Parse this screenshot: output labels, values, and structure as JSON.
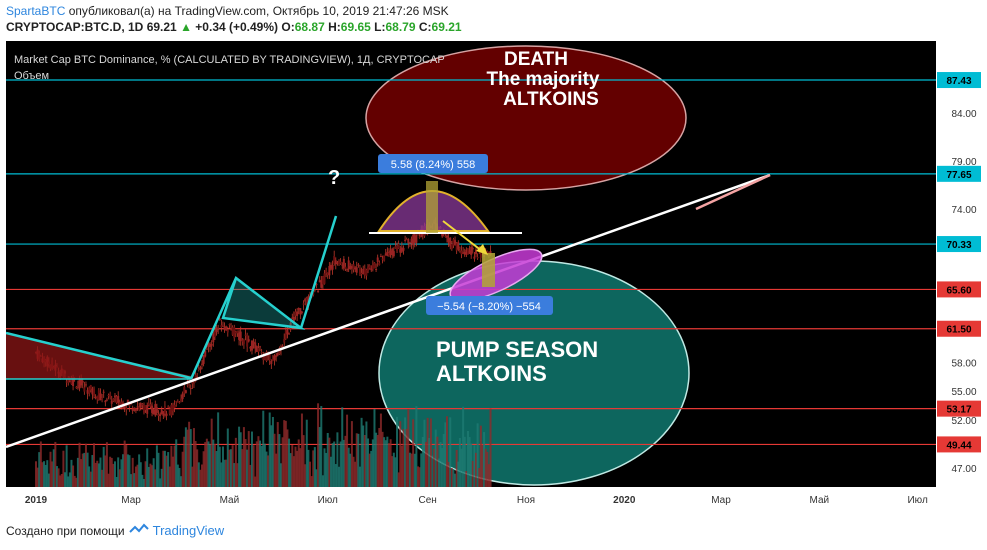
{
  "header": {
    "author": "SpartaBTC",
    "published_text": " опубликовал(а) на TradingView.com, Октябрь 10, 2019 21:47:26 MSK",
    "symbol_line": "CRYPTOCAP:BTC.D, 1D",
    "last": "69.21",
    "change": "+0.34 (+0.49%)",
    "o_label": "O:",
    "o": "68.87",
    "h_label": "H:",
    "h": "69.65",
    "l_label": "L:",
    "l": "68.79",
    "c_label": "C:",
    "c": "69.21"
  },
  "footer": {
    "text": "Создано при помощи",
    "brand": "TradingView"
  },
  "chart_data": {
    "type": "candlestick",
    "title": "Market Cap BTC Dominance, % (CALCULATED BY TRADINGVIEW), 1Д, CRYPTOCAP",
    "volume_label": "Объем",
    "x_labels": [
      "2019",
      "Мар",
      "Май",
      "Июл",
      "Сен",
      "Ноя",
      "2020",
      "Мар",
      "Май",
      "Июл"
    ],
    "y_ticks": [
      47.0,
      52.0,
      55.0,
      58.0,
      61.5,
      65.6,
      70.33,
      74.0,
      77.65,
      79.0,
      84.0,
      87.43
    ],
    "y_tick_labels": [
      "47.00",
      "52.00",
      "55.00",
      "58.00",
      "",
      "",
      "",
      "74.00",
      "",
      "79.00",
      "84.00",
      ""
    ],
    "ylim": [
      45.0,
      91.5
    ],
    "price_path": [
      [
        "2019-01-01",
        59.0
      ],
      [
        "2019-01-20",
        56.5
      ],
      [
        "2019-02-10",
        54.5
      ],
      [
        "2019-03-01",
        53.5
      ],
      [
        "2019-03-25",
        52.8
      ],
      [
        "2019-04-10",
        56.5
      ],
      [
        "2019-04-25",
        62.0
      ],
      [
        "2019-05-10",
        60.5
      ],
      [
        "2019-05-28",
        58.0
      ],
      [
        "2019-06-10",
        62.5
      ],
      [
        "2019-06-28",
        66.5
      ],
      [
        "2019-07-05",
        68.5
      ],
      [
        "2019-07-25",
        67.5
      ],
      [
        "2019-08-10",
        69.5
      ],
      [
        "2019-08-25",
        71.0
      ],
      [
        "2019-09-05",
        72.5
      ],
      [
        "2019-09-15",
        70.5
      ],
      [
        "2019-09-25",
        69.5
      ],
      [
        "2019-10-10",
        69.21
      ]
    ],
    "horizontal_levels": [
      {
        "value": 87.43,
        "label": "87.43",
        "color": "#00bcd4"
      },
      {
        "value": 77.65,
        "label": "77.65",
        "color": "#00bcd4"
      },
      {
        "value": 70.33,
        "label": "70.33",
        "color": "#00bcd4"
      },
      {
        "value": 65.6,
        "label": "65.60",
        "color": "#e53935"
      },
      {
        "value": 61.5,
        "label": "61.50",
        "color": "#e53935"
      },
      {
        "value": 53.17,
        "label": "53.17",
        "color": "#e53935"
      },
      {
        "value": 49.44,
        "label": "49.44",
        "color": "#e53935"
      }
    ],
    "annotations": {
      "death": "DEATH",
      "death_line2": "The majority",
      "death_line3": "ALTKOINS",
      "question": "?",
      "range_up": "5.58 (8.24%) 558",
      "range_down": "−5.54 (−8.20%) −554",
      "pump1": "PUMP SEASON",
      "pump2": "ALTKOINS"
    },
    "colors": {
      "background": "#000000",
      "candle_up": "#7a1a1a",
      "candle_down": "#a31f1f",
      "trendline": "#ffffff",
      "pattern_cyan": "#26d0ce",
      "death_fill": "#6e0000",
      "pump_fill": "#0e6b63",
      "dome_fill": "#8b3a9a",
      "dome_stroke": "#e1b12c",
      "target_fill": "#c73bd6",
      "label_blue": "#3b7ddd"
    },
    "grid": false
  }
}
